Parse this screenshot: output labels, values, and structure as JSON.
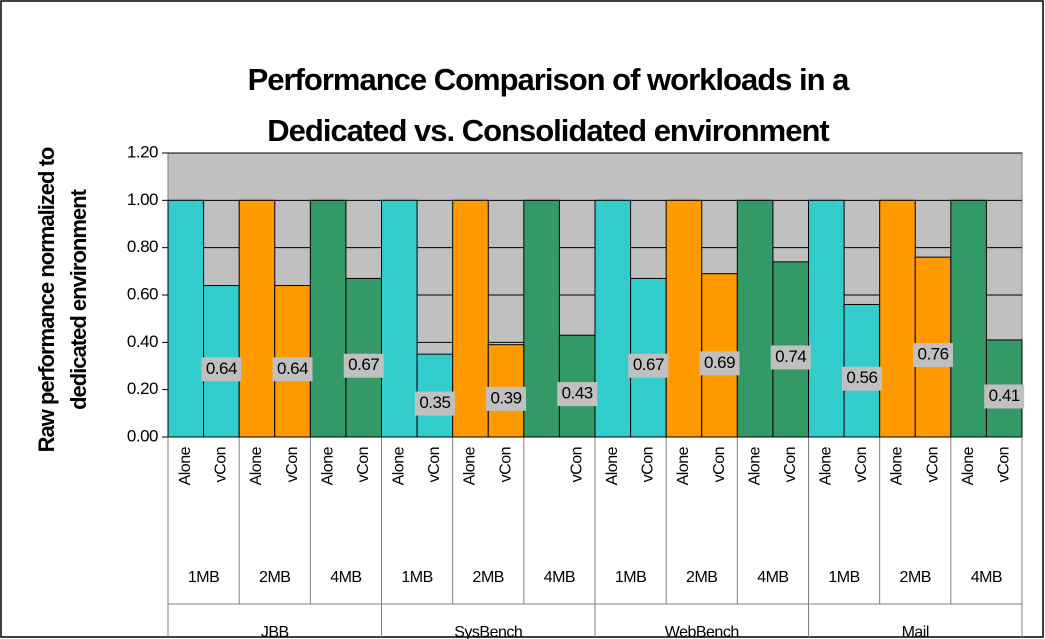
{
  "chart_data": {
    "type": "bar",
    "title": [
      "Performance Comparison of workloads in a",
      "Dedicated vs. Consolidated environment"
    ],
    "ylabel": [
      "Raw performance normalized to",
      "dedicated environment"
    ],
    "ylim": [
      0,
      1.2
    ],
    "yticks": [
      {
        "value": 0,
        "label": "0.00"
      },
      {
        "value": 0.2,
        "label": "0.20"
      },
      {
        "value": 0.4,
        "label": "0.40"
      },
      {
        "value": 0.6,
        "label": "0.60"
      },
      {
        "value": 0.8,
        "label": "0.80"
      },
      {
        "value": 1,
        "label": "1.00"
      },
      {
        "value": 1.2,
        "label": "1.20"
      }
    ],
    "grid": true,
    "groups": [
      {
        "name": "JBB",
        "subgroups": [
          {
            "name": "1MB",
            "color": "#33CCCC",
            "categories": [
              "Alone",
              "vCon"
            ],
            "values": [
              1,
              0.64
            ],
            "value_labels": [
              null,
              "0.64"
            ]
          },
          {
            "name": "2MB",
            "color": "#FF9900",
            "categories": [
              "Alone",
              "vCon"
            ],
            "values": [
              1,
              0.64
            ],
            "value_labels": [
              null,
              "0.64"
            ]
          },
          {
            "name": "4MB",
            "color": "#339966",
            "categories": [
              "Alone",
              "vCon"
            ],
            "values": [
              1,
              0.67
            ],
            "value_labels": [
              null,
              "0.67"
            ]
          }
        ]
      },
      {
        "name": "SysBench",
        "subgroups": [
          {
            "name": "1MB",
            "color": "#33CCCC",
            "categories": [
              "Alone",
              "vCon"
            ],
            "values": [
              1,
              0.35
            ],
            "value_labels": [
              null,
              "0.35"
            ]
          },
          {
            "name": "2MB",
            "color": "#FF9900",
            "categories": [
              "Alone",
              "vCon"
            ],
            "values": [
              1,
              0.39
            ],
            "value_labels": [
              null,
              "0.39"
            ]
          },
          {
            "name": "4MB",
            "color": "#339966",
            "categories": [
              null,
              "vCon"
            ],
            "values": [
              1,
              0.43
            ],
            "value_labels": [
              null,
              "0.43"
            ]
          }
        ]
      },
      {
        "name": "WebBench",
        "subgroups": [
          {
            "name": "1MB",
            "color": "#33CCCC",
            "categories": [
              "Alone",
              "vCon"
            ],
            "values": [
              1,
              0.67
            ],
            "value_labels": [
              null,
              "0.67"
            ]
          },
          {
            "name": "2MB",
            "color": "#FF9900",
            "categories": [
              "Alone",
              "vCon"
            ],
            "values": [
              1,
              0.69
            ],
            "value_labels": [
              null,
              "0.69"
            ]
          },
          {
            "name": "4MB",
            "color": "#339966",
            "categories": [
              "Alone",
              "vCon"
            ],
            "values": [
              1,
              0.74
            ],
            "value_labels": [
              null,
              "0.74"
            ]
          }
        ]
      },
      {
        "name": "Mail",
        "subgroups": [
          {
            "name": "1MB",
            "color": "#33CCCC",
            "categories": [
              "Alone",
              "vCon"
            ],
            "values": [
              1,
              0.56
            ],
            "value_labels": [
              null,
              "0.56"
            ]
          },
          {
            "name": "2MB",
            "color": "#FF9900",
            "categories": [
              "Alone",
              "vCon"
            ],
            "values": [
              1,
              0.76
            ],
            "value_labels": [
              null,
              "0.76"
            ]
          },
          {
            "name": "4MB",
            "color": "#339966",
            "categories": [
              "Alone",
              "vCon"
            ],
            "values": [
              1,
              0.41
            ],
            "value_labels": [
              null,
              "0.41"
            ]
          }
        ]
      }
    ]
  }
}
